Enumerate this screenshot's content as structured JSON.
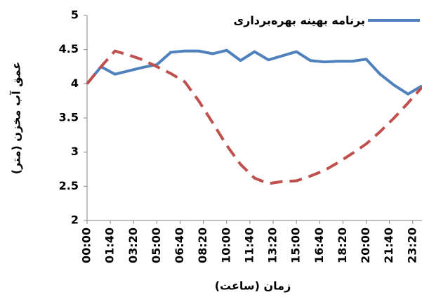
{
  "chart_data": {
    "type": "line",
    "y_label": "عمق آب مخزن (متر)",
    "x_label": "زمان (ساعت)",
    "x": [
      0,
      60,
      120,
      180,
      240,
      300,
      360,
      420,
      480,
      540,
      600,
      660,
      720,
      780,
      840,
      900,
      960,
      1020,
      1080,
      1140,
      1200,
      1260,
      1320,
      1380,
      1440
    ],
    "series": [
      {
        "name": "برنامه بهینه بهره‌برداری",
        "color": "#4f81bd",
        "style": "solid",
        "values": [
          4.0,
          4.25,
          4.14,
          4.19,
          4.24,
          4.28,
          4.46,
          4.48,
          4.48,
          4.44,
          4.49,
          4.34,
          4.47,
          4.35,
          4.41,
          4.47,
          4.34,
          4.32,
          4.33,
          4.33,
          4.36,
          4.14,
          3.98,
          3.85,
          3.97
        ]
      },
      {
        "color": "#c0504d",
        "style": "dashed",
        "values": [
          4.0,
          4.25,
          4.48,
          4.42,
          4.35,
          4.25,
          4.15,
          4.03,
          3.75,
          3.43,
          3.1,
          2.82,
          2.62,
          2.54,
          2.57,
          2.58,
          2.65,
          2.73,
          2.85,
          2.98,
          3.12,
          3.3,
          3.5,
          3.72,
          3.95
        ]
      }
    ],
    "xlim": [
      0,
      1440
    ],
    "xticks": [
      {
        "value": 0,
        "label": "00:00"
      },
      {
        "value": 100,
        "label": "01:40"
      },
      {
        "value": 200,
        "label": "03:20"
      },
      {
        "value": 300,
        "label": "05:00"
      },
      {
        "value": 400,
        "label": "06:40"
      },
      {
        "value": 500,
        "label": "08:20"
      },
      {
        "value": 600,
        "label": "10:00"
      },
      {
        "value": 700,
        "label": "11:40"
      },
      {
        "value": 800,
        "label": "13:20"
      },
      {
        "value": 900,
        "label": "15:00"
      },
      {
        "value": 1000,
        "label": "16:40"
      },
      {
        "value": 1100,
        "label": "18:20"
      },
      {
        "value": 1200,
        "label": "20:00"
      },
      {
        "value": 1300,
        "label": "21:40"
      },
      {
        "value": 1400,
        "label": "23:20"
      }
    ],
    "ylim": [
      2,
      5
    ],
    "yticks": [
      2,
      2.5,
      3,
      3.5,
      4,
      4.5,
      5
    ],
    "grid": false,
    "legend": "top-right"
  }
}
